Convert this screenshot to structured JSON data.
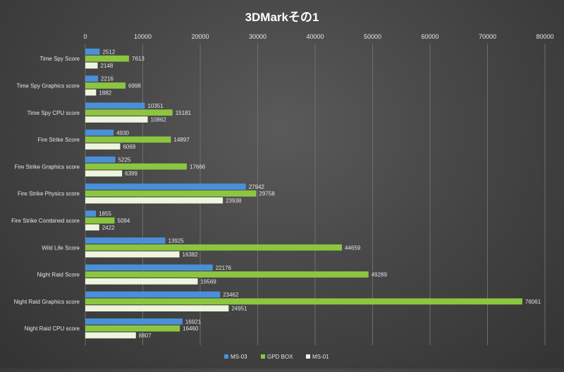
{
  "chart_data": {
    "type": "bar",
    "orientation": "horizontal",
    "title": "3DMarkその1",
    "xlim": [
      0,
      80000
    ],
    "xticks": [
      0,
      10000,
      20000,
      30000,
      40000,
      50000,
      60000,
      70000,
      80000
    ],
    "x_axis_position": "top",
    "grid": true,
    "legend_position": "bottom",
    "categories": [
      "Time Spy Score",
      "Time Spy Graphics score",
      "Time Spy CPU score",
      "Fire Strike Score",
      "Fire Strike Graphics score",
      "Fire Strike Physics score",
      "Fire Strike Combined score",
      "Wild Life Score",
      "Night Raid Score",
      "Night Raid Graphics score",
      "Night Raid CPU score"
    ],
    "series": [
      {
        "name": "MS-03",
        "color": "#4a90d9",
        "values": [
          2512,
          2216,
          10351,
          4930,
          5225,
          27942,
          1855,
          13925,
          22176,
          23462,
          16921
        ]
      },
      {
        "name": "GPD BOX",
        "color": "#8cc63f",
        "values": [
          7613,
          6998,
          15181,
          14897,
          17666,
          29758,
          5094,
          44659,
          49289,
          76061,
          16460
        ]
      },
      {
        "name": "MS-01",
        "color": "#eef5df",
        "values": [
          2148,
          1882,
          10862,
          6069,
          6399,
          23938,
          2422,
          16382,
          19569,
          24951,
          8807
        ]
      }
    ]
  }
}
